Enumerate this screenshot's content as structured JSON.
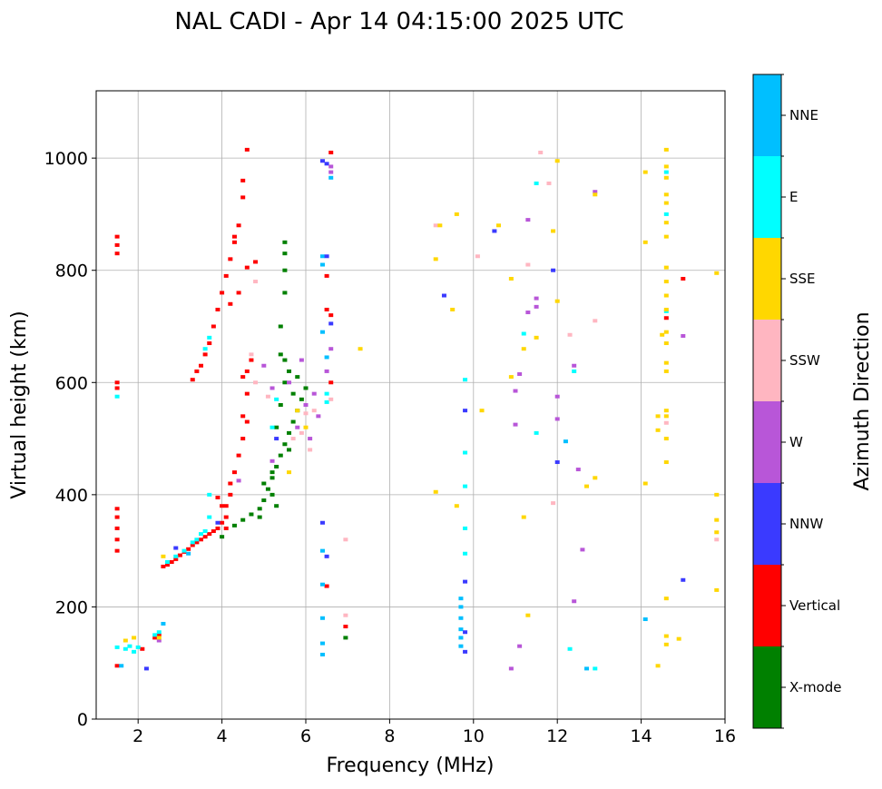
{
  "chart_data": {
    "type": "scatter",
    "title": "NAL CADI - Apr 14 04:15:00 2025 UTC",
    "xlabel": "Frequency (MHz)",
    "ylabel": "Virtual height (km)",
    "xlim": [
      1,
      16
    ],
    "ylim": [
      0,
      1120
    ],
    "xticks": [
      2,
      4,
      6,
      8,
      10,
      12,
      14,
      16
    ],
    "yticks": [
      0,
      200,
      400,
      600,
      800,
      1000
    ],
    "grid": true,
    "colorbar": {
      "label": "Azimuth Direction",
      "categories": [
        {
          "name": "X-mode",
          "color": "#008000"
        },
        {
          "name": "Vertical",
          "color": "#ff0000"
        },
        {
          "name": "NNW",
          "color": "#3a3aff"
        },
        {
          "name": "W",
          "color": "#b856d8"
        },
        {
          "name": "SSW",
          "color": "#ffb6c1"
        },
        {
          "name": "SSE",
          "color": "#ffd700"
        },
        {
          "name": "E",
          "color": "#00ffff"
        },
        {
          "name": "NNE",
          "color": "#00bfff"
        }
      ]
    },
    "series": [
      {
        "name": "Vertical",
        "points": [
          [
            2.6,
            272
          ],
          [
            2.7,
            275
          ],
          [
            2.8,
            280
          ],
          [
            2.9,
            285
          ],
          [
            3.0,
            292
          ],
          [
            3.1,
            298
          ],
          [
            3.2,
            303
          ],
          [
            3.3,
            310
          ],
          [
            3.4,
            315
          ],
          [
            3.5,
            320
          ],
          [
            3.6,
            325
          ],
          [
            3.7,
            330
          ],
          [
            3.8,
            335
          ],
          [
            3.9,
            340
          ],
          [
            4.0,
            350
          ],
          [
            4.1,
            360
          ],
          [
            4.1,
            380
          ],
          [
            4.2,
            400
          ],
          [
            4.2,
            420
          ],
          [
            4.3,
            440
          ],
          [
            4.4,
            470
          ],
          [
            4.5,
            500
          ],
          [
            4.5,
            540
          ],
          [
            4.6,
            580
          ],
          [
            4.6,
            620
          ],
          [
            4.7,
            640
          ],
          [
            3.3,
            605
          ],
          [
            3.4,
            620
          ],
          [
            3.5,
            630
          ],
          [
            3.6,
            650
          ],
          [
            3.7,
            670
          ],
          [
            3.8,
            700
          ],
          [
            3.9,
            730
          ],
          [
            4.0,
            760
          ],
          [
            4.1,
            790
          ],
          [
            4.2,
            820
          ],
          [
            4.3,
            850
          ],
          [
            4.4,
            880
          ],
          [
            4.5,
            930
          ],
          [
            4.5,
            960
          ],
          [
            4.6,
            1015
          ],
          [
            1.5,
            300
          ],
          [
            1.5,
            320
          ],
          [
            1.5,
            340
          ],
          [
            1.5,
            360
          ],
          [
            1.5,
            375
          ],
          [
            1.5,
            590
          ],
          [
            1.5,
            600
          ],
          [
            1.5,
            830
          ],
          [
            1.5,
            845
          ],
          [
            1.5,
            860
          ],
          [
            1.5,
            95
          ],
          [
            6.5,
            237
          ],
          [
            6.5,
            730
          ],
          [
            6.6,
            720
          ],
          [
            6.5,
            790
          ],
          [
            6.6,
            600
          ],
          [
            6.6,
            1010
          ],
          [
            15.0,
            785
          ],
          [
            14.6,
            715
          ],
          [
            6.95,
            165
          ],
          [
            4.6,
            805
          ],
          [
            4.8,
            815
          ],
          [
            2.1,
            125
          ],
          [
            2.4,
            145
          ],
          [
            2.5,
            150
          ],
          [
            4.0,
            380
          ],
          [
            4.1,
            340
          ],
          [
            3.9,
            395
          ],
          [
            4.3,
            860
          ],
          [
            4.2,
            740
          ],
          [
            4.4,
            760
          ],
          [
            4.5,
            610
          ],
          [
            4.6,
            530
          ]
        ]
      },
      {
        "name": "X-mode",
        "points": [
          [
            4.3,
            345
          ],
          [
            4.5,
            355
          ],
          [
            4.7,
            365
          ],
          [
            4.9,
            375
          ],
          [
            5.0,
            390
          ],
          [
            5.1,
            410
          ],
          [
            5.2,
            430
          ],
          [
            5.3,
            450
          ],
          [
            5.4,
            470
          ],
          [
            5.5,
            490
          ],
          [
            5.6,
            510
          ],
          [
            5.7,
            530
          ],
          [
            5.8,
            550
          ],
          [
            5.9,
            570
          ],
          [
            6.0,
            590
          ],
          [
            5.4,
            560
          ],
          [
            5.5,
            600
          ],
          [
            5.5,
            640
          ],
          [
            5.4,
            700
          ],
          [
            5.5,
            760
          ],
          [
            5.5,
            800
          ],
          [
            5.5,
            830
          ],
          [
            5.5,
            850
          ],
          [
            5.2,
            440
          ],
          [
            5.3,
            520
          ],
          [
            5.6,
            620
          ],
          [
            5.3,
            380
          ],
          [
            4.0,
            325
          ],
          [
            6.95,
            145
          ],
          [
            5.0,
            420
          ],
          [
            5.6,
            480
          ],
          [
            5.8,
            610
          ],
          [
            5.7,
            580
          ],
          [
            5.4,
            650
          ],
          [
            5.2,
            400
          ],
          [
            4.9,
            360
          ]
        ]
      },
      {
        "name": "E",
        "points": [
          [
            1.5,
            128
          ],
          [
            1.7,
            125
          ],
          [
            1.8,
            130
          ],
          [
            1.9,
            120
          ],
          [
            2.0,
            128
          ],
          [
            2.4,
            150
          ],
          [
            2.5,
            155
          ],
          [
            2.7,
            280
          ],
          [
            2.9,
            290
          ],
          [
            3.1,
            300
          ],
          [
            3.4,
            320
          ],
          [
            3.6,
            335
          ],
          [
            3.7,
            360
          ],
          [
            3.7,
            400
          ],
          [
            3.6,
            660
          ],
          [
            3.7,
            680
          ],
          [
            5.2,
            520
          ],
          [
            5.3,
            570
          ],
          [
            6.5,
            565
          ],
          [
            6.5,
            580
          ],
          [
            9.8,
            295
          ],
          [
            9.8,
            340
          ],
          [
            9.8,
            475
          ],
          [
            9.8,
            415
          ],
          [
            9.8,
            605
          ],
          [
            11.5,
            955
          ],
          [
            11.5,
            510
          ],
          [
            12.4,
            620
          ],
          [
            12.9,
            90
          ],
          [
            14.6,
            900
          ],
          [
            14.6,
            975
          ],
          [
            14.6,
            727
          ],
          [
            11.2,
            687
          ],
          [
            12.3,
            125
          ],
          [
            1.5,
            575
          ],
          [
            3.3,
            315
          ],
          [
            3.5,
            330
          ]
        ]
      },
      {
        "name": "NNE",
        "points": [
          [
            9.7,
            200
          ],
          [
            9.7,
            180
          ],
          [
            9.7,
            160
          ],
          [
            9.7,
            145
          ],
          [
            9.7,
            130
          ],
          [
            9.7,
            215
          ],
          [
            6.4,
            135
          ],
          [
            6.4,
            115
          ],
          [
            6.4,
            180
          ],
          [
            6.4,
            240
          ],
          [
            6.4,
            300
          ],
          [
            14.1,
            178
          ],
          [
            12.7,
            90
          ],
          [
            12.2,
            495
          ],
          [
            6.4,
            825
          ],
          [
            6.6,
            965
          ],
          [
            6.4,
            810
          ],
          [
            6.4,
            690
          ],
          [
            6.5,
            645
          ],
          [
            1.6,
            95
          ],
          [
            2.6,
            170
          ],
          [
            3.2,
            295
          ]
        ]
      },
      {
        "name": "NNW",
        "points": [
          [
            6.6,
            705
          ],
          [
            6.5,
            825
          ],
          [
            9.8,
            245
          ],
          [
            9.8,
            155
          ],
          [
            9.8,
            120
          ],
          [
            9.8,
            550
          ],
          [
            9.3,
            755
          ],
          [
            10.5,
            870
          ],
          [
            11.9,
            800
          ],
          [
            12.0,
            458
          ],
          [
            15.0,
            248
          ],
          [
            2.2,
            90
          ],
          [
            6.4,
            995
          ],
          [
            6.5,
            990
          ],
          [
            2.9,
            305
          ],
          [
            3.9,
            350
          ],
          [
            6.4,
            350
          ],
          [
            6.5,
            290
          ],
          [
            5.3,
            500
          ]
        ]
      },
      {
        "name": "W",
        "points": [
          [
            6.6,
            985
          ],
          [
            6.6,
            975
          ],
          [
            6.2,
            580
          ],
          [
            6.0,
            560
          ],
          [
            5.8,
            520
          ],
          [
            6.3,
            540
          ],
          [
            5.6,
            600
          ],
          [
            6.5,
            620
          ],
          [
            6.6,
            660
          ],
          [
            5.0,
            630
          ],
          [
            5.2,
            590
          ],
          [
            11.0,
            585
          ],
          [
            11.0,
            525
          ],
          [
            11.1,
            615
          ],
          [
            11.3,
            725
          ],
          [
            11.3,
            890
          ],
          [
            11.5,
            735
          ],
          [
            11.5,
            750
          ],
          [
            12.0,
            535
          ],
          [
            12.0,
            575
          ],
          [
            12.4,
            630
          ],
          [
            12.5,
            445
          ],
          [
            12.4,
            210
          ],
          [
            12.6,
            302
          ],
          [
            12.9,
            940
          ],
          [
            15.0,
            683
          ],
          [
            11.1,
            130
          ],
          [
            10.9,
            90
          ],
          [
            2.5,
            140
          ],
          [
            4.4,
            425
          ],
          [
            5.2,
            460
          ],
          [
            6.1,
            500
          ],
          [
            5.9,
            640
          ]
        ]
      },
      {
        "name": "SSW",
        "points": [
          [
            6.0,
            545
          ],
          [
            5.9,
            510
          ],
          [
            5.7,
            500
          ],
          [
            6.1,
            480
          ],
          [
            6.2,
            550
          ],
          [
            4.8,
            600
          ],
          [
            5.1,
            575
          ],
          [
            6.95,
            320
          ],
          [
            6.95,
            185
          ],
          [
            11.9,
            385
          ],
          [
            10.1,
            825
          ],
          [
            12.9,
            710
          ],
          [
            15.8,
            320
          ],
          [
            14.6,
            528
          ],
          [
            11.8,
            955
          ],
          [
            11.6,
            1010
          ],
          [
            9.1,
            880
          ],
          [
            6.6,
            570
          ],
          [
            4.7,
            650
          ],
          [
            4.8,
            780
          ],
          [
            12.3,
            685
          ],
          [
            11.3,
            810
          ]
        ]
      },
      {
        "name": "SSE",
        "points": [
          [
            9.1,
            405
          ],
          [
            9.1,
            820
          ],
          [
            9.2,
            880
          ],
          [
            9.6,
            900
          ],
          [
            9.6,
            380
          ],
          [
            9.5,
            730
          ],
          [
            10.2,
            550
          ],
          [
            10.6,
            880
          ],
          [
            10.9,
            610
          ],
          [
            10.9,
            785
          ],
          [
            11.2,
            360
          ],
          [
            11.2,
            660
          ],
          [
            11.3,
            185
          ],
          [
            11.5,
            680
          ],
          [
            11.9,
            870
          ],
          [
            12.0,
            745
          ],
          [
            12.0,
            995
          ],
          [
            12.7,
            415
          ],
          [
            12.9,
            430
          ],
          [
            12.9,
            935
          ],
          [
            14.1,
            420
          ],
          [
            14.1,
            850
          ],
          [
            14.1,
            975
          ],
          [
            14.4,
            95
          ],
          [
            14.4,
            515
          ],
          [
            14.4,
            540
          ],
          [
            14.5,
            685
          ],
          [
            14.6,
            1015
          ],
          [
            14.6,
            985
          ],
          [
            14.6,
            965
          ],
          [
            14.6,
            935
          ],
          [
            14.6,
            920
          ],
          [
            14.6,
            885
          ],
          [
            14.6,
            860
          ],
          [
            14.6,
            805
          ],
          [
            14.6,
            780
          ],
          [
            14.6,
            755
          ],
          [
            14.6,
            730
          ],
          [
            14.6,
            690
          ],
          [
            14.6,
            670
          ],
          [
            14.6,
            635
          ],
          [
            14.6,
            620
          ],
          [
            14.6,
            550
          ],
          [
            14.6,
            540
          ],
          [
            14.6,
            500
          ],
          [
            14.6,
            458
          ],
          [
            14.6,
            215
          ],
          [
            14.6,
            148
          ],
          [
            14.6,
            133
          ],
          [
            14.9,
            143
          ],
          [
            15.8,
            795
          ],
          [
            15.8,
            400
          ],
          [
            15.8,
            355
          ],
          [
            15.8,
            333
          ],
          [
            15.8,
            230
          ],
          [
            7.3,
            660
          ],
          [
            2.6,
            290
          ],
          [
            5.8,
            550
          ],
          [
            6.0,
            520
          ],
          [
            5.6,
            440
          ],
          [
            1.7,
            140
          ],
          [
            1.9,
            145
          ],
          [
            2.5,
            145
          ]
        ]
      }
    ]
  }
}
